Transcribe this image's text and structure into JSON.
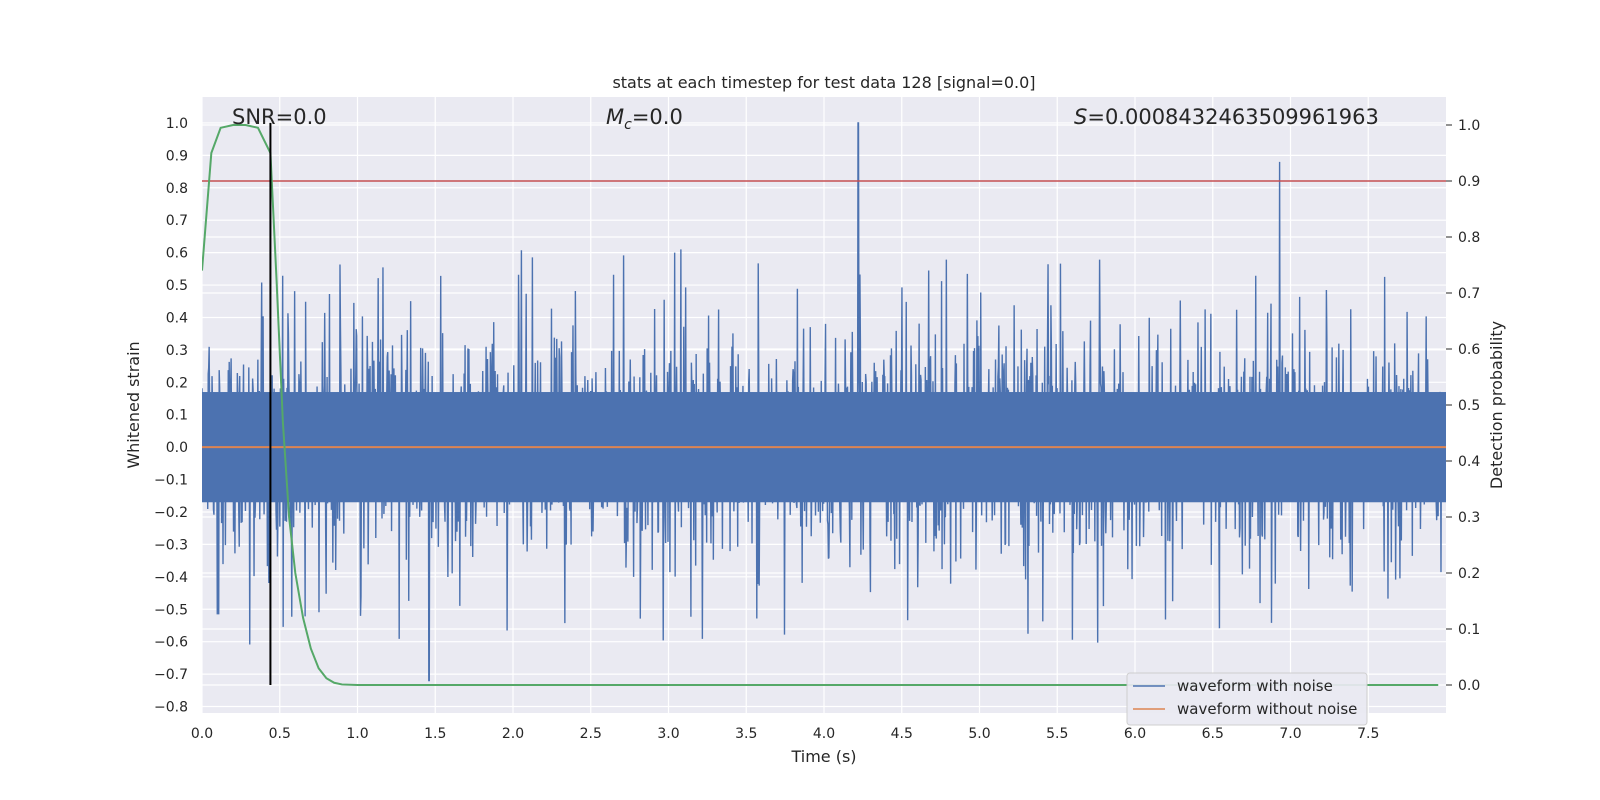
{
  "chart_data": {
    "type": "line",
    "title": "stats at each timestep for test data 128 [signal=0.0]",
    "xlabel": "Time (s)",
    "ylabel_left": "Whitened strain",
    "ylabel_right": "Detection probability",
    "xlim": [
      0.0,
      8.0
    ],
    "ylim_left": [
      -0.82,
      1.08
    ],
    "ylim_right": [
      -0.05,
      1.05
    ],
    "x_ticks": [
      "0.0",
      "0.5",
      "1.0",
      "1.5",
      "2.0",
      "2.5",
      "3.0",
      "3.5",
      "4.0",
      "4.5",
      "5.0",
      "5.5",
      "6.0",
      "6.5",
      "7.0",
      "7.5"
    ],
    "y_left_ticks": [
      "1.0",
      "0.9",
      "0.8",
      "0.7",
      "0.6",
      "0.5",
      "0.4",
      "0.3",
      "0.2",
      "0.1",
      "0.0",
      "−0.1",
      "−0.2",
      "−0.3",
      "−0.4",
      "−0.5",
      "−0.6",
      "−0.7",
      "−0.8"
    ],
    "y_right_ticks": [
      "1.0",
      "0.9",
      "0.8",
      "0.7",
      "0.6",
      "0.5",
      "0.4",
      "0.3",
      "0.2",
      "0.1",
      "0.0"
    ],
    "annotations": {
      "snr": "SNR=0.0",
      "mc_symbol": "M",
      "mc_sub": "c",
      "mc_value": "=0.0",
      "s_symbol": "S",
      "s_value": "=0.000843246350996196​3"
    },
    "threshold": 0.9,
    "event_time": 0.44,
    "noise_envelope": {
      "core_amplitude": 0.17,
      "max_peak": 1.0,
      "max_peak_time": 4.22,
      "min_trough": -0.72,
      "min_trough_time": 1.46
    },
    "series": [
      {
        "name": "waveform with noise",
        "color": "#4c72b0",
        "axis": "left",
        "description_values": "noisy strain samples between -0.72 and 1.0"
      },
      {
        "name": "waveform without noise",
        "color": "#dd8452",
        "axis": "left",
        "values_constant": 0.0
      },
      {
        "name": "detection probability",
        "color": "#55a868",
        "axis": "right",
        "x": [
          0.0,
          0.06,
          0.12,
          0.2,
          0.28,
          0.36,
          0.44,
          0.48,
          0.52,
          0.56,
          0.6,
          0.65,
          0.7,
          0.75,
          0.8,
          0.85,
          0.9,
          1.0,
          2.0,
          4.0,
          6.0,
          7.95
        ],
        "y": [
          0.74,
          0.95,
          0.995,
          1.0,
          1.0,
          0.995,
          0.95,
          0.72,
          0.47,
          0.3,
          0.2,
          0.12,
          0.065,
          0.03,
          0.012,
          0.004,
          0.001,
          0.0,
          0.0,
          0.0,
          0.0,
          0.0
        ]
      },
      {
        "name": "detection threshold",
        "color": "#c44e52",
        "axis": "right",
        "values_constant": 0.9
      }
    ],
    "legend": {
      "placement": "lower-right",
      "entries": [
        {
          "label": "waveform with noise",
          "color": "#4c72b0"
        },
        {
          "label": "waveform without noise",
          "color": "#dd8452"
        }
      ]
    }
  }
}
